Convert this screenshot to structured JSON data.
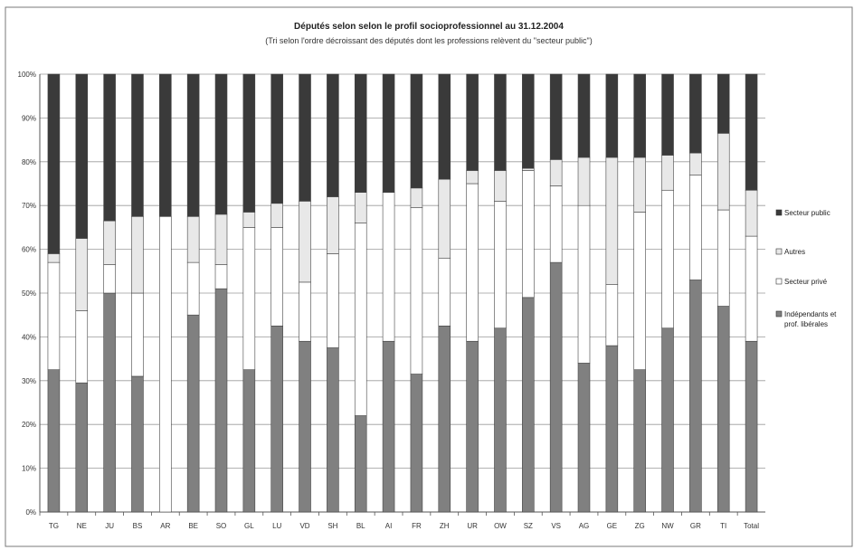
{
  "chart_data": {
    "type": "bar",
    "stacked": true,
    "percent": true,
    "title": "Députés selon selon le profil socioprofessionnel au 31.12.2004",
    "subtitle": "(Tri selon l'ordre décroissant des députés dont les professions relèvent du \"secteur public\")",
    "ylim": [
      0,
      100
    ],
    "yticks": [
      "0%",
      "10%",
      "20%",
      "30%",
      "40%",
      "50%",
      "60%",
      "70%",
      "80%",
      "90%",
      "100%"
    ],
    "grid": true,
    "legend_position": "right",
    "categories": [
      "TG",
      "NE",
      "JU",
      "BS",
      "AR",
      "BE",
      "SO",
      "GL",
      "LU",
      "VD",
      "SH",
      "BL",
      "AI",
      "FR",
      "ZH",
      "UR",
      "OW",
      "SZ",
      "VS",
      "AG",
      "GE",
      "ZG",
      "NW",
      "GR",
      "TI",
      "Total"
    ],
    "series": [
      {
        "name": "Indépendants et prof. libérales",
        "color": "#808080",
        "values": [
          32.5,
          29.5,
          50,
          31,
          0,
          45,
          51,
          32.5,
          42.5,
          39,
          37.5,
          22,
          39,
          31.5,
          42.5,
          39,
          42,
          49,
          57,
          34,
          38,
          32.5,
          42,
          53,
          47,
          39
        ]
      },
      {
        "name": "Secteur privé",
        "color": "#ffffff",
        "values": [
          24.5,
          16.5,
          6.5,
          19,
          67.5,
          12,
          5.5,
          32.5,
          22.5,
          13.5,
          21.5,
          44,
          34,
          38,
          15.5,
          36,
          29,
          29,
          17.5,
          36,
          14,
          36,
          31.5,
          24,
          22,
          24
        ]
      },
      {
        "name": "Autres",
        "color": "#e8e8e8",
        "values": [
          2,
          16.5,
          10,
          17.5,
          0,
          10.5,
          11.5,
          3.5,
          5.5,
          18.5,
          13,
          7,
          0,
          4.5,
          18,
          3,
          7,
          0.5,
          6,
          11,
          29,
          12.5,
          8,
          5,
          17.5,
          10.5
        ]
      },
      {
        "name": "Secteur public",
        "color": "#3a3a3a",
        "values": [
          41,
          37.5,
          33.5,
          32.5,
          32.5,
          32.5,
          32,
          31.5,
          29.5,
          29,
          28,
          27,
          27,
          26,
          24,
          22,
          22,
          21.5,
          19.5,
          19,
          19,
          19,
          18.5,
          18,
          13.5,
          26.5
        ]
      }
    ],
    "legend_order": [
      "Secteur public",
      "Autres",
      "Secteur privé",
      "Indépendants et prof. libérales"
    ]
  }
}
